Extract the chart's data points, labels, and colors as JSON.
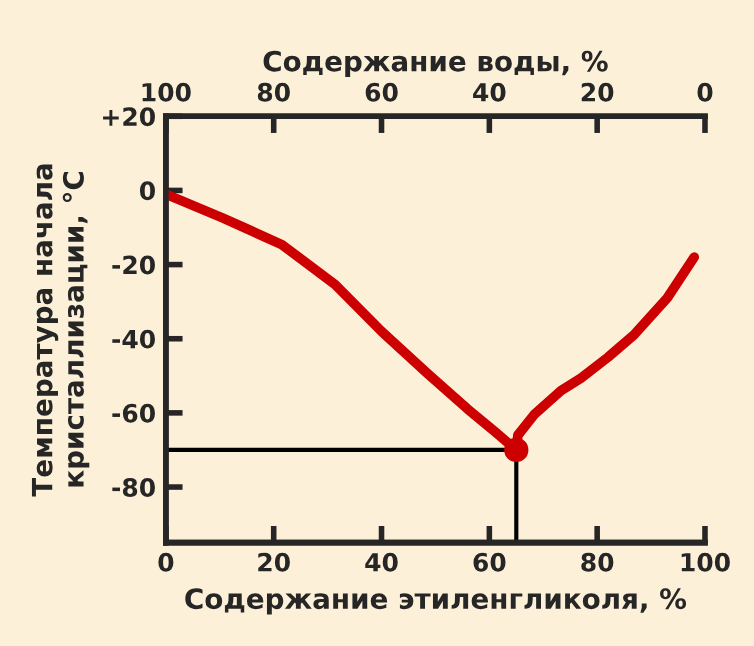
{
  "chart_data": {
    "type": "line",
    "xlabel": "Содержание этиленгликоля, %",
    "ylabel": "Температура начала\nкристаллизации, °C",
    "x2label": "Содержание воды, %",
    "xlim": [
      0,
      100
    ],
    "xticks": [
      0,
      20,
      40,
      60,
      80,
      100
    ],
    "x2lim": [
      100,
      0
    ],
    "x2ticks": [
      100,
      80,
      60,
      40,
      20,
      0
    ],
    "ylim": [
      -95,
      20
    ],
    "yticks": [
      {
        "value": 20,
        "label": "+20"
      },
      0,
      -20,
      -40,
      -60,
      -80
    ],
    "grid": false,
    "legend": false,
    "line_style": "solid",
    "series": [
      {
        "color": "#cc0000",
        "marker": "none",
        "x": [
          0,
          10.5,
          21.5,
          31.4,
          40,
          48.6,
          56,
          61,
          65
        ],
        "values": [
          -1,
          -7.4,
          -14.6,
          -25.4,
          -38,
          -49.5,
          -59,
          -65,
          -70
        ]
      },
      {
        "color": "#cc0000",
        "marker": "none",
        "x": [
          65,
          65.3,
          68.3,
          73.3,
          77,
          82,
          86.8,
          93,
          98
        ],
        "values": [
          -70,
          -66,
          -60.5,
          -54,
          -50.6,
          -45,
          -39,
          -29,
          -18
        ]
      },
      {
        "type": "scatter",
        "color": "#cc0000",
        "marker": "circle",
        "x": [
          65
        ],
        "values": [
          -70
        ]
      }
    ],
    "ref_lines": [
      {
        "axis": "x",
        "value": 65,
        "color": "#000000"
      },
      {
        "axis": "y",
        "value": -70,
        "color": "#000000"
      }
    ]
  }
}
